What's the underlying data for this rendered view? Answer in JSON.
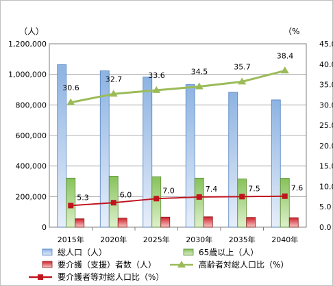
{
  "chart_data": {
    "type": "bar",
    "categories": [
      "2015年",
      "2020年",
      "2025年",
      "2030年",
      "2035年",
      "2040年"
    ],
    "left_axis": {
      "unit": "（人）",
      "ylim": [
        0,
        1200000
      ],
      "ticks": [
        "0",
        "200,000",
        "400,000",
        "600,000",
        "800,000",
        "1,000,000",
        "1,200,000"
      ]
    },
    "right_axis": {
      "unit": "（%",
      "ylim": [
        0,
        45
      ],
      "ticks": [
        "0.0",
        "5.0",
        "10.0",
        "15.0",
        "20.0",
        "25.0",
        "30.0",
        "35.0",
        "40.0",
        "45.0"
      ]
    },
    "grid": "horizontal",
    "legend_position": "bottom",
    "series": [
      {
        "name": "総人口（人）",
        "kind": "bar",
        "axis": "left",
        "color": "#8eb4e3",
        "values": [
          1063000,
          1023000,
          983000,
          933000,
          883000,
          833000
        ]
      },
      {
        "name": "65歳以上（人）",
        "kind": "bar",
        "axis": "left",
        "color": "#9bd16f",
        "values": [
          321000,
          334000,
          330000,
          321000,
          316000,
          320000
        ]
      },
      {
        "name": "要介護（支援）者数（人）",
        "kind": "bar",
        "axis": "left",
        "color": "#e05050",
        "values": [
          55000,
          59000,
          66000,
          68000,
          64000,
          62000
        ]
      },
      {
        "name": "高齢者対総人口比（%）",
        "kind": "line",
        "axis": "right",
        "color": "#9bbb59",
        "marker": "triangle",
        "values": [
          30.6,
          32.7,
          33.6,
          34.5,
          35.7,
          38.4
        ],
        "labels": [
          "30.6",
          "32.7",
          "33.6",
          "34.5",
          "35.7",
          "38.4"
        ]
      },
      {
        "name": "要介護者等対総人口比（%）",
        "kind": "line",
        "axis": "right",
        "color": "#c0141e",
        "marker": "square",
        "values": [
          5.3,
          6.0,
          7.0,
          7.4,
          7.5,
          7.6
        ],
        "labels": [
          "5.3",
          "6.0",
          "7.0",
          "7.4",
          "7.5",
          "7.6"
        ]
      }
    ]
  }
}
